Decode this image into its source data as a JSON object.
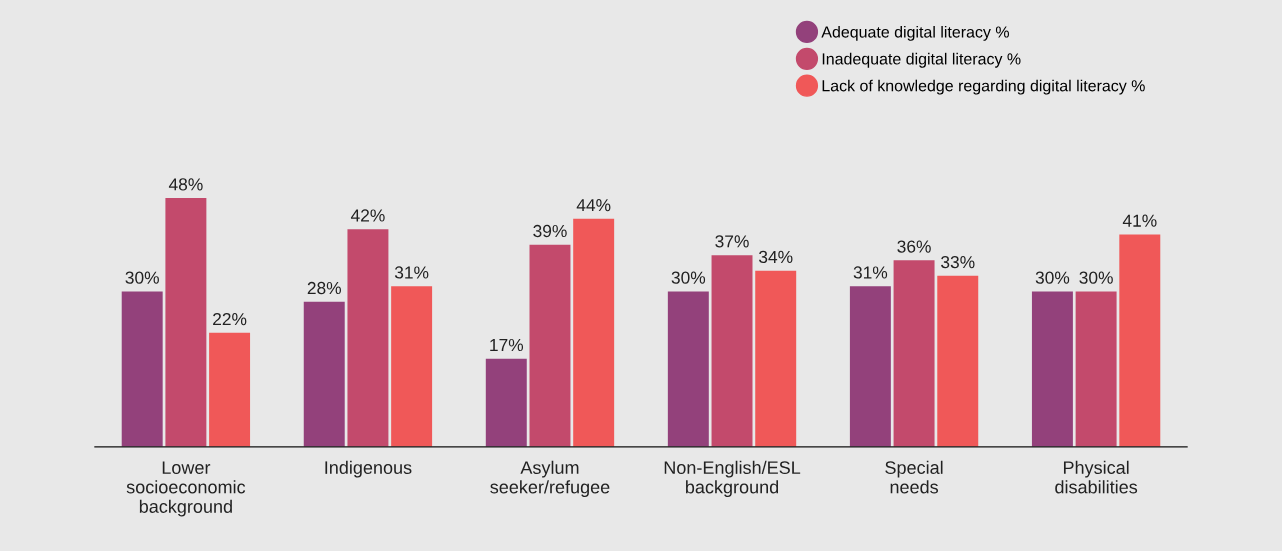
{
  "chart_data": {
    "type": "bar",
    "categories": [
      "Lower\nsocioeconomic\nbackground",
      "Indigenous",
      "Asylum\nseeker/refugee",
      "Non-English/ESL\nbackground",
      "Special\nneeds",
      "Physical\ndisabilities"
    ],
    "series": [
      {
        "name": "Adequate digital literacy %",
        "color": "#93417b",
        "values": [
          30,
          28,
          17,
          30,
          31,
          30
        ],
        "value_labels": [
          "30%",
          "28%",
          "17%",
          "30%",
          "31%",
          "30%"
        ]
      },
      {
        "name": "Inadequate digital literacy %",
        "color": "#c34a6c",
        "values": [
          48,
          42,
          39,
          37,
          36,
          30
        ],
        "value_labels": [
          "48%",
          "42%",
          "39%",
          "37%",
          "36%",
          "30%"
        ]
      },
      {
        "name": "Lack of knowledge regarding digital literacy %",
        "color": "#f05858",
        "values": [
          22,
          31,
          44,
          34,
          33,
          41
        ],
        "value_labels": [
          "22%",
          "31%",
          "44%",
          "34%",
          "33%",
          "41%"
        ]
      }
    ],
    "tick_labels": "x",
    "grid": false,
    "legend": "top right",
    "marker": "circle"
  }
}
